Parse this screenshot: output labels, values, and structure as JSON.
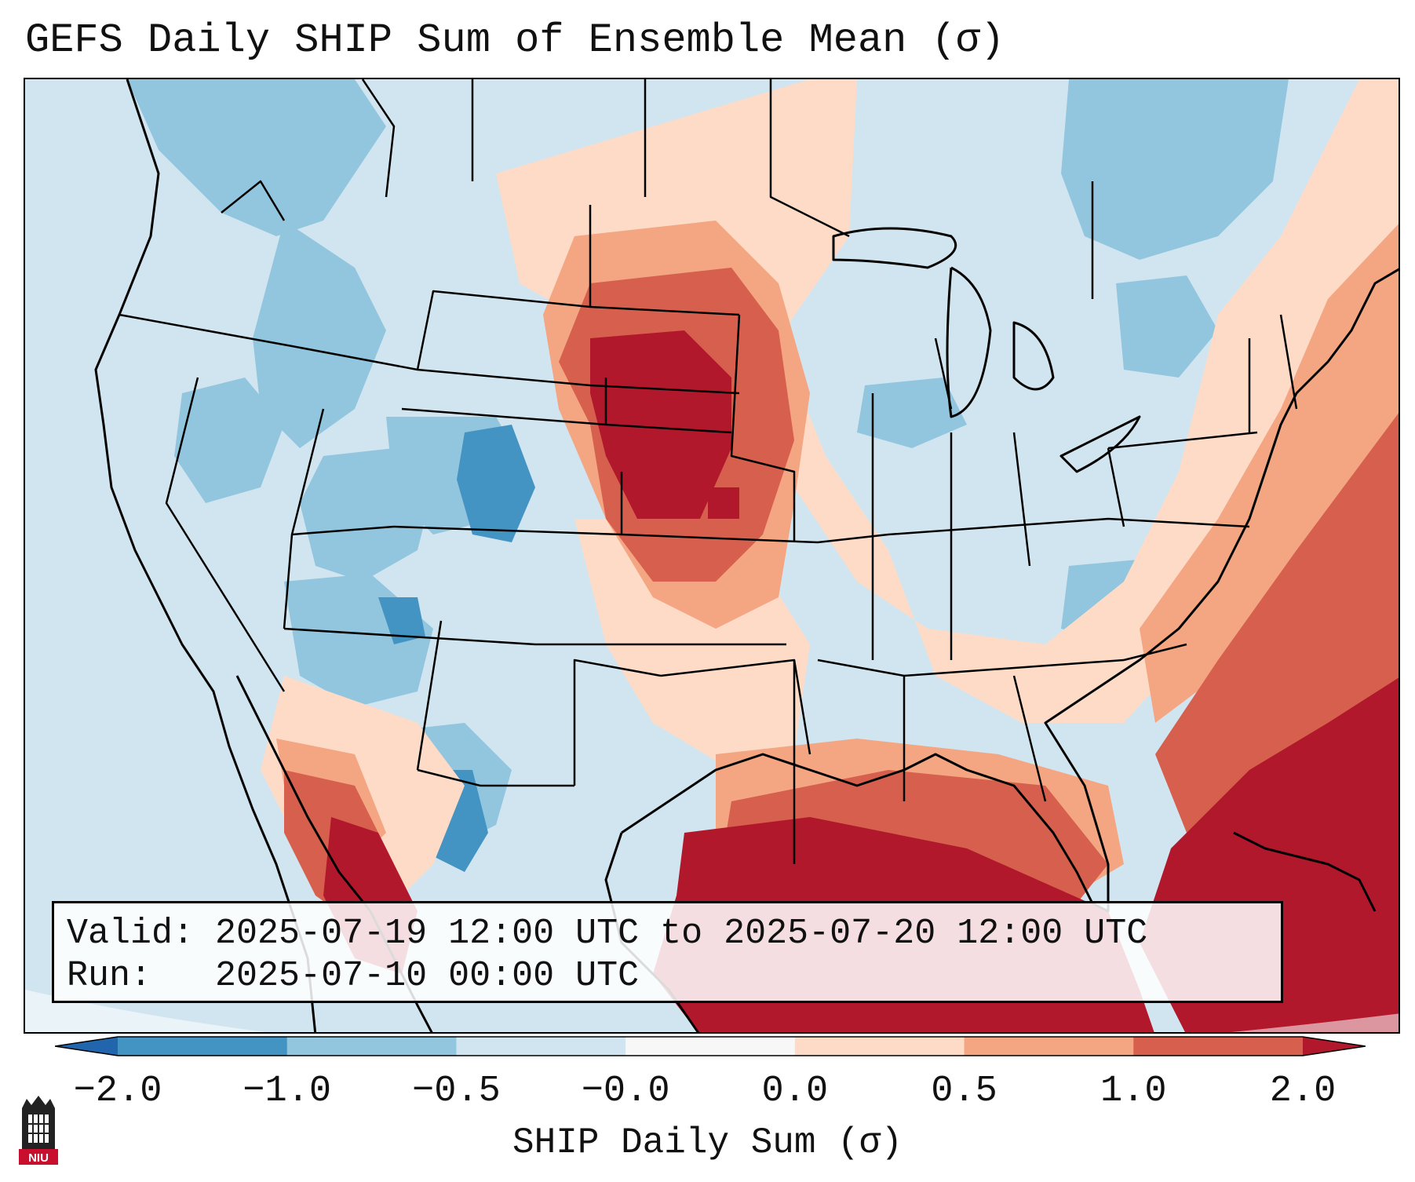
{
  "title": "GEFS Daily SHIP Sum of Ensemble Mean (σ)",
  "info": {
    "valid_label": "Valid:",
    "valid_text": "2025-07-19 12:00 UTC to 2025-07-20 12:00 UTC",
    "run_label": "Run:",
    "run_text": "2025-07-10 00:00 UTC"
  },
  "colorbar": {
    "label": "SHIP Daily Sum (σ)",
    "ticks": [
      "−2.0",
      "−1.0",
      "−0.5",
      "−0.0",
      "0.0",
      "0.5",
      "1.0",
      "2.0"
    ],
    "bins": [
      {
        "from": -2.0,
        "to": -1.0,
        "color": "#4393c3"
      },
      {
        "from": -1.0,
        "to": -0.5,
        "color": "#92c5de"
      },
      {
        "from": -0.5,
        "to": -0.0,
        "color": "#d1e5f0"
      },
      {
        "from": -0.0,
        "to": 0.0,
        "color": "#f7f7f7"
      },
      {
        "from": 0.0,
        "to": 0.5,
        "color": "#fddbc7"
      },
      {
        "from": 0.5,
        "to": 1.0,
        "color": "#f4a582"
      },
      {
        "from": 1.0,
        "to": 2.0,
        "color": "#d6604d"
      }
    ],
    "under_color": "#2166ac",
    "over_color": "#b2182b"
  },
  "logo_text": "NIU"
}
